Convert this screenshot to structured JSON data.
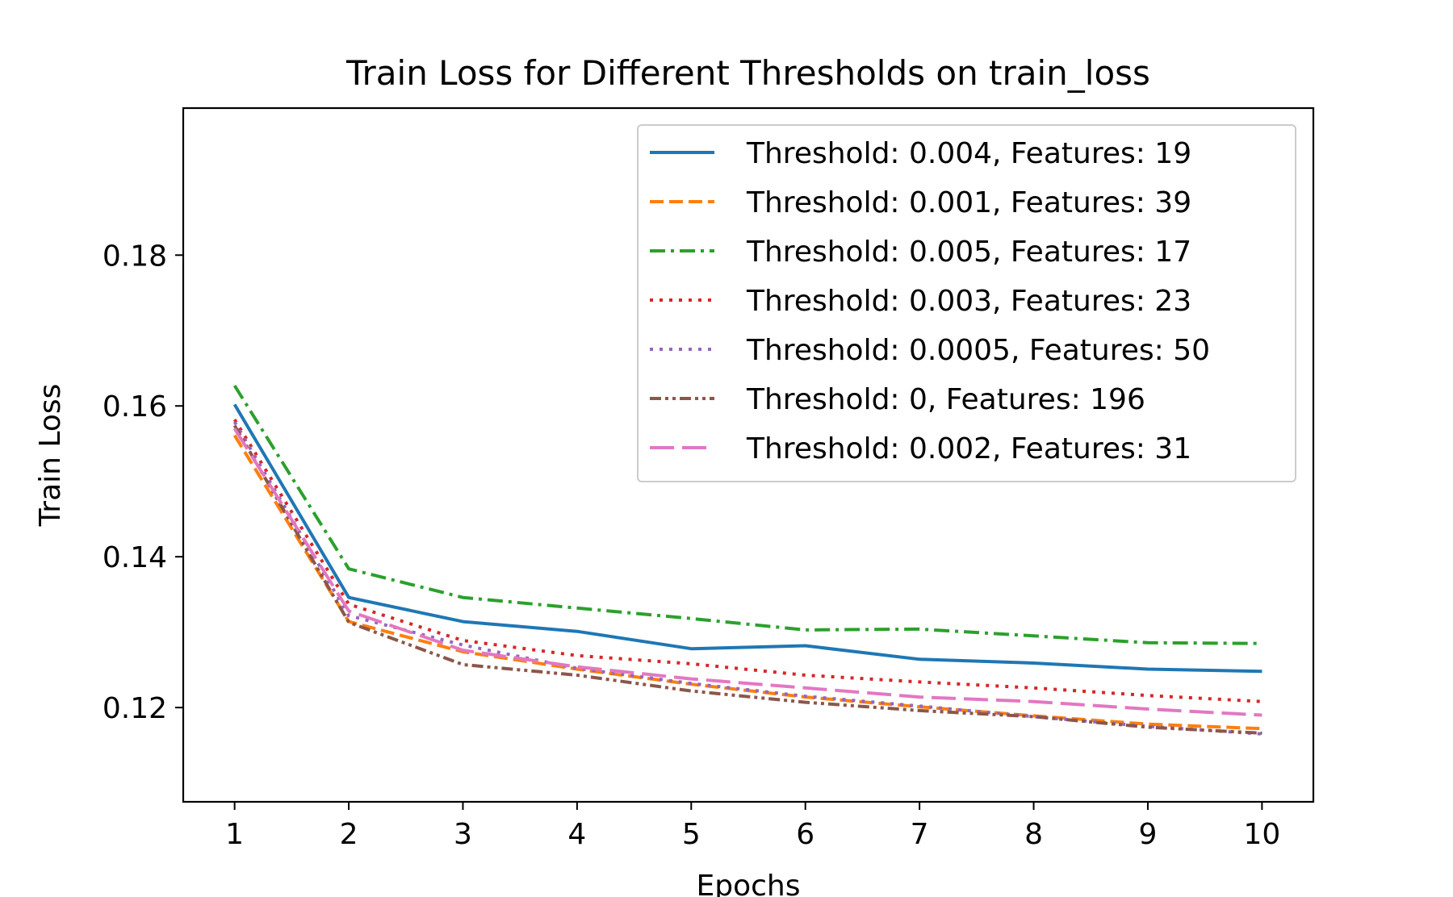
{
  "chart_data": {
    "type": "line",
    "title": "Train Loss for Different Thresholds on train_loss",
    "xlabel": "Epochs",
    "ylabel": "Train Loss",
    "x": [
      1,
      2,
      3,
      4,
      5,
      6,
      7,
      8,
      9,
      10
    ],
    "xticks": [
      "1",
      "2",
      "3",
      "4",
      "5",
      "6",
      "7",
      "8",
      "9",
      "10"
    ],
    "yticks": [
      0.12,
      0.14,
      0.16,
      0.18
    ],
    "ytick_labels": [
      "0.12",
      "0.14",
      "0.16",
      "0.18"
    ],
    "xlim": [
      0.55,
      10.45
    ],
    "ylim": [
      0.1075,
      0.1995
    ],
    "grid": false,
    "legend_position": "top-right",
    "series": [
      {
        "name": "Threshold: 0.004, Features: 19",
        "color": "#1f77b4",
        "linestyle": "solid",
        "values": [
          0.1602,
          0.1346,
          0.1314,
          0.1301,
          0.1278,
          0.1282,
          0.1264,
          0.1259,
          0.1251,
          0.1248
        ]
      },
      {
        "name": "Threshold: 0.001, Features: 39",
        "color": "#ff7f0e",
        "linestyle": "dashed",
        "values": [
          0.1561,
          0.1314,
          0.1274,
          0.1251,
          0.1231,
          0.1214,
          0.1201,
          0.1189,
          0.1178,
          0.1172
        ]
      },
      {
        "name": "Threshold: 0.005, Features: 17",
        "color": "#2ca02c",
        "linestyle": "dashdot",
        "values": [
          0.1627,
          0.1384,
          0.1346,
          0.1332,
          0.1318,
          0.1303,
          0.1304,
          0.1295,
          0.1286,
          0.1285
        ]
      },
      {
        "name": "Threshold: 0.003, Features: 23",
        "color": "#d62728",
        "linestyle": "dotted",
        "values": [
          0.1582,
          0.1337,
          0.1289,
          0.1269,
          0.1258,
          0.1243,
          0.1234,
          0.1226,
          0.1216,
          0.1208
        ]
      },
      {
        "name": "Threshold: 0.0005, Features: 50",
        "color": "#9467bd",
        "linestyle": "dotted",
        "values": [
          0.1579,
          0.1322,
          0.1283,
          0.1252,
          0.1232,
          0.1215,
          0.1202,
          0.1188,
          0.1175,
          0.1165
        ]
      },
      {
        "name": "Threshold: 0, Features: 196",
        "color": "#8c564b",
        "linestyle": "dashdotdot",
        "values": [
          0.1574,
          0.1313,
          0.1257,
          0.1243,
          0.1222,
          0.1207,
          0.1196,
          0.1188,
          0.1174,
          0.1166
        ]
      },
      {
        "name": "Threshold: 0.002, Features: 31",
        "color": "#e377c2",
        "linestyle": "longdash",
        "values": [
          0.157,
          0.1328,
          0.1276,
          0.1254,
          0.1238,
          0.1226,
          0.1214,
          0.1208,
          0.1198,
          0.119
        ]
      }
    ]
  }
}
